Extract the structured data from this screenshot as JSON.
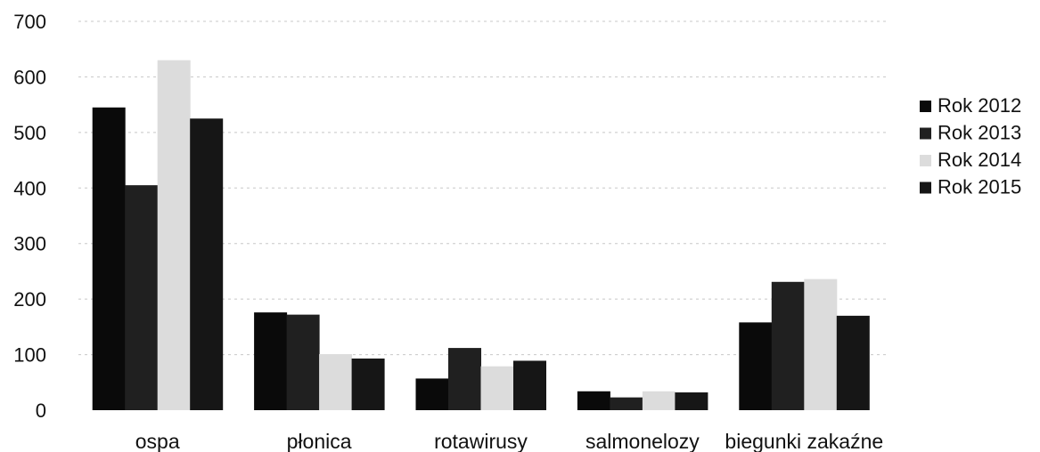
{
  "chart_data": {
    "type": "bar",
    "categories": [
      "ospa",
      "płonica",
      "rotawirusy",
      "salmonelozy",
      "biegunki zakaźne"
    ],
    "series": [
      {
        "name": "Rok 2012",
        "values": [
          545,
          176,
          57,
          34,
          158
        ],
        "color": "#0a0a0a"
      },
      {
        "name": "Rok 2013",
        "values": [
          405,
          172,
          112,
          23,
          231
        ],
        "color": "#202020"
      },
      {
        "name": "Rok 2014",
        "values": [
          630,
          101,
          79,
          34,
          236
        ],
        "color": "#dcdcdc"
      },
      {
        "name": "Rok 2015",
        "values": [
          525,
          93,
          89,
          32,
          170
        ],
        "color": "#161616"
      }
    ],
    "ylim": [
      0,
      700
    ],
    "yticks": [
      0,
      100,
      200,
      300,
      400,
      500,
      600,
      700
    ],
    "grid": true,
    "legend_position": "right"
  }
}
